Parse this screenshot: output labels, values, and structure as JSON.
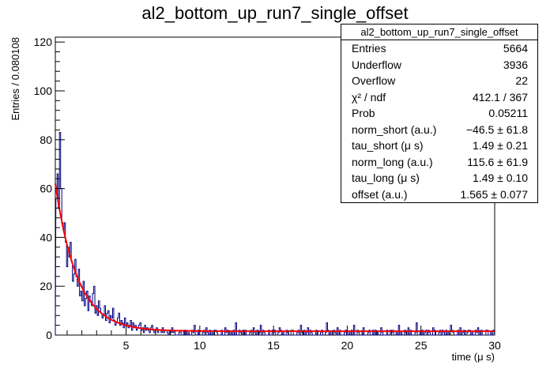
{
  "chart_data": {
    "type": "histogram",
    "title": "al2_bottom_up_run7_single_offset",
    "xlabel": "time (μ s)",
    "ylabel": "Entries / 0.080108",
    "xlim": [
      0.2,
      30
    ],
    "ylim": [
      0,
      122
    ],
    "bin_width": 0.080108,
    "x_ticks": [
      5,
      10,
      15,
      20,
      25,
      30
    ],
    "y_ticks": [
      0,
      20,
      40,
      60,
      80,
      100,
      120
    ],
    "histogram_color": "#000080",
    "fit_color": "#ff0000",
    "bins_head_x_start": 0.24,
    "bins_head": [
      56,
      66,
      52,
      83,
      60,
      46,
      43,
      46,
      38,
      28,
      36,
      32,
      38,
      30,
      22,
      25,
      31,
      24,
      20,
      27,
      16,
      18,
      14,
      22,
      12,
      15,
      18,
      10,
      16,
      14,
      12,
      17,
      20,
      9,
      12,
      8,
      14,
      11,
      9,
      7,
      8,
      12,
      6,
      9,
      10,
      5,
      8,
      7,
      11,
      6,
      4,
      5,
      7,
      9,
      4,
      6,
      5,
      3,
      7,
      4,
      5,
      3,
      4,
      6,
      2,
      5,
      3,
      4,
      2,
      3,
      4,
      5,
      2,
      3,
      1,
      4,
      2,
      3,
      2,
      1,
      3,
      4,
      2,
      1,
      2,
      3,
      1,
      2,
      2,
      1,
      3,
      1,
      2,
      2,
      1,
      0,
      2,
      1,
      3,
      1
    ],
    "tail_sparse_bins_x": [
      8.1,
      8.9,
      9.6,
      10.4,
      11.0,
      11.7,
      12.4,
      12.9,
      13.6,
      14.1,
      14.9,
      15.4,
      16.2,
      16.8,
      17.3,
      17.9,
      18.6,
      19.3,
      19.9,
      20.4,
      21.1,
      21.7,
      22.3,
      22.9,
      23.5,
      24.1,
      24.7,
      25.3,
      25.8,
      26.4,
      27.0,
      27.6,
      28.2,
      28.8,
      29.4
    ],
    "tail_sparse_bins_y": [
      3,
      2,
      4,
      3,
      2,
      3,
      5,
      2,
      3,
      4,
      2,
      3,
      2,
      4,
      3,
      2,
      5,
      3,
      2,
      4,
      3,
      2,
      3,
      2,
      4,
      3,
      5,
      2,
      3,
      2,
      4,
      3,
      2,
      3,
      2
    ],
    "fit": {
      "function": "norm_short*exp(-t/tau_short) + norm_long*exp(-t/tau_long) + offset",
      "norm_short": -46.5,
      "tau_short": 1.49,
      "norm_long": 115.6,
      "tau_long": 1.49,
      "offset": 1.565
    },
    "stats": {
      "title": "al2_bottom_up_run7_single_offset",
      "rows": [
        {
          "label": "Entries",
          "value": "5664"
        },
        {
          "label": "Underflow",
          "value": "3936"
        },
        {
          "label": "Overflow",
          "value": "22"
        },
        {
          "label": "χ² / ndf",
          "value": "412.1 / 367"
        },
        {
          "label": "Prob",
          "value": "0.05211"
        },
        {
          "label": "norm_short (a.u.)",
          "value": "−46.5 ± 61.8"
        },
        {
          "label": "tau_short (μ s)",
          "value": "1.49 ± 0.21"
        },
        {
          "label": "norm_long (a.u.)",
          "value": "115.6 ± 61.9"
        },
        {
          "label": "tau_long (μ s)",
          "value": "1.49 ± 0.10"
        },
        {
          "label": "offset (a.u.)",
          "value": "1.565 ± 0.077"
        }
      ]
    }
  }
}
